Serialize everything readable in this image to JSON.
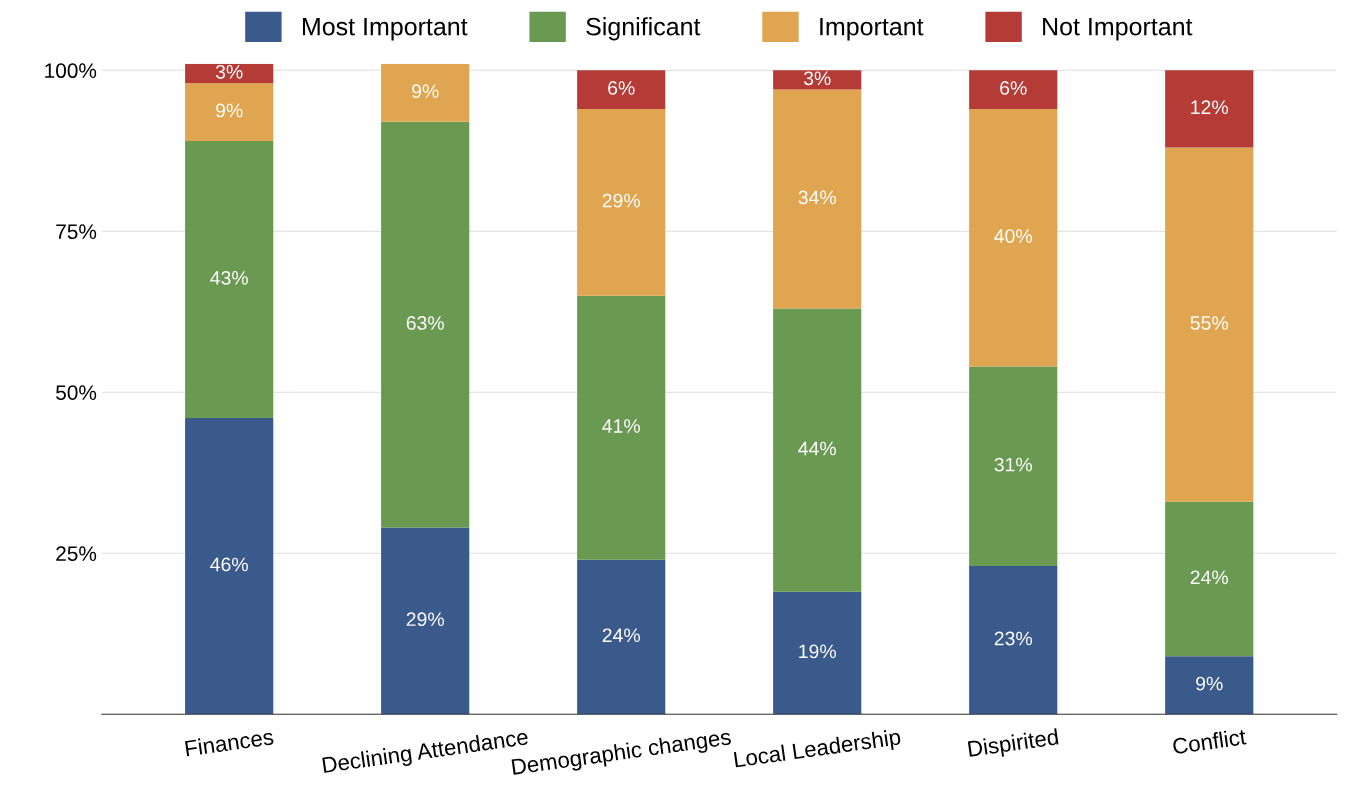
{
  "chart_data": {
    "type": "bar",
    "stacked": true,
    "categories": [
      "Finances",
      "Declining Attendance",
      "Demographic changes",
      "Local Leadership",
      "Dispirited",
      "Conflict"
    ],
    "series": [
      {
        "name": "Most Important",
        "color": "#3a5a8c",
        "values": [
          46,
          29,
          24,
          19,
          23,
          9
        ],
        "value_labels": [
          "46%",
          "29%",
          "24%",
          "19%",
          "23%",
          "9%"
        ]
      },
      {
        "name": "Significant",
        "color": "#6a9952",
        "values": [
          43,
          63,
          41,
          44,
          31,
          24
        ],
        "value_labels": [
          "43%",
          "63%",
          "41%",
          "44%",
          "31%",
          "24%"
        ]
      },
      {
        "name": "Important",
        "color": "#dfa550",
        "values": [
          9,
          9,
          29,
          34,
          40,
          55
        ],
        "value_labels": [
          "9%",
          "9%",
          "29%",
          "34%",
          "40%",
          "55%"
        ]
      },
      {
        "name": "Not Important",
        "color": "#b53b37",
        "values": [
          3,
          null,
          6,
          3,
          6,
          12
        ],
        "value_labels": [
          "3%",
          null,
          "6%",
          "3%",
          "6%",
          "12%"
        ]
      }
    ],
    "ylim": [
      0,
      101
    ],
    "yticks": [
      {
        "value": 0,
        "label": null
      },
      {
        "value": 25,
        "label": "25%"
      },
      {
        "value": 50,
        "label": "50%"
      },
      {
        "value": 75,
        "label": "75%"
      },
      {
        "value": 100,
        "label": "100%"
      }
    ],
    "grid": "y",
    "legend": "top"
  }
}
